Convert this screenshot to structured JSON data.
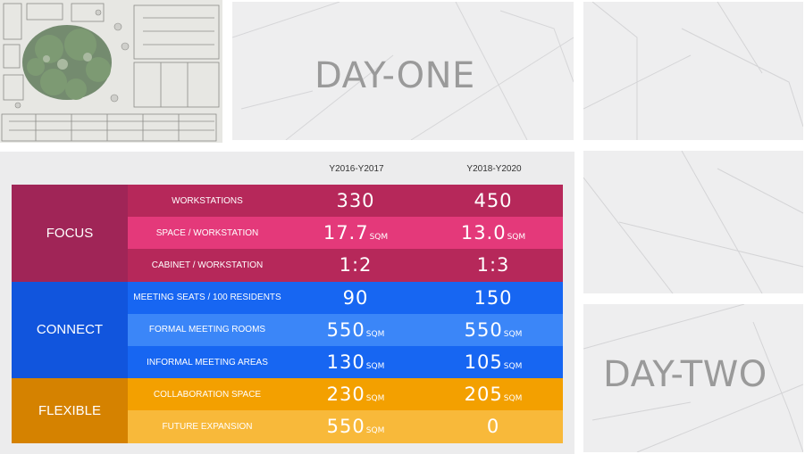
{
  "tiles": {
    "day_one": "DAY-ONE",
    "day_two": "DAY-TWO"
  },
  "table": {
    "columns": [
      "Y2016-Y2017",
      "Y2018-Y2020"
    ],
    "groups": [
      {
        "name": "FOCUS",
        "color": "#a02557",
        "rows": [
          {
            "label": "WORKSTATIONS",
            "v1": "330",
            "u1": "",
            "v2": "450",
            "u2": "",
            "color": "#b6285a"
          },
          {
            "label": "SPACE / WORKSTATION",
            "v1": "17.7",
            "u1": "SQM",
            "v2": "13.0",
            "u2": "SQM",
            "color": "#e4397a"
          },
          {
            "label": "CABINET / WORKSTATION",
            "v1": "1:2",
            "u1": "",
            "v2": "1:3",
            "u2": "",
            "color": "#b6285a"
          }
        ]
      },
      {
        "name": "CONNECT",
        "color": "#1155dd",
        "rows": [
          {
            "label": "MEETING SEATS / 100 RESIDENTS",
            "v1": "90",
            "u1": "",
            "v2": "150",
            "u2": "",
            "color": "#1766f2"
          },
          {
            "label": "FORMAL MEETING ROOMS",
            "v1": "550",
            "u1": "SQM",
            "v2": "550",
            "u2": "SQM",
            "color": "#3b86f8"
          },
          {
            "label": "INFORMAL MEETING AREAS",
            "v1": "130",
            "u1": "SQM",
            "v2": "105",
            "u2": "SQM",
            "color": "#1766f2"
          }
        ]
      },
      {
        "name": "FLEXIBLE",
        "color": "#d58200",
        "rows": [
          {
            "label": "COLLABORATION SPACE",
            "v1": "230",
            "u1": "SQM",
            "v2": "205",
            "u2": "SQM",
            "color": "#f3a000"
          },
          {
            "label": "FUTURE EXPANSION",
            "v1": "550",
            "u1": "SQM",
            "v2": "0",
            "u2": "",
            "color": "#f8b93a"
          }
        ]
      }
    ]
  }
}
